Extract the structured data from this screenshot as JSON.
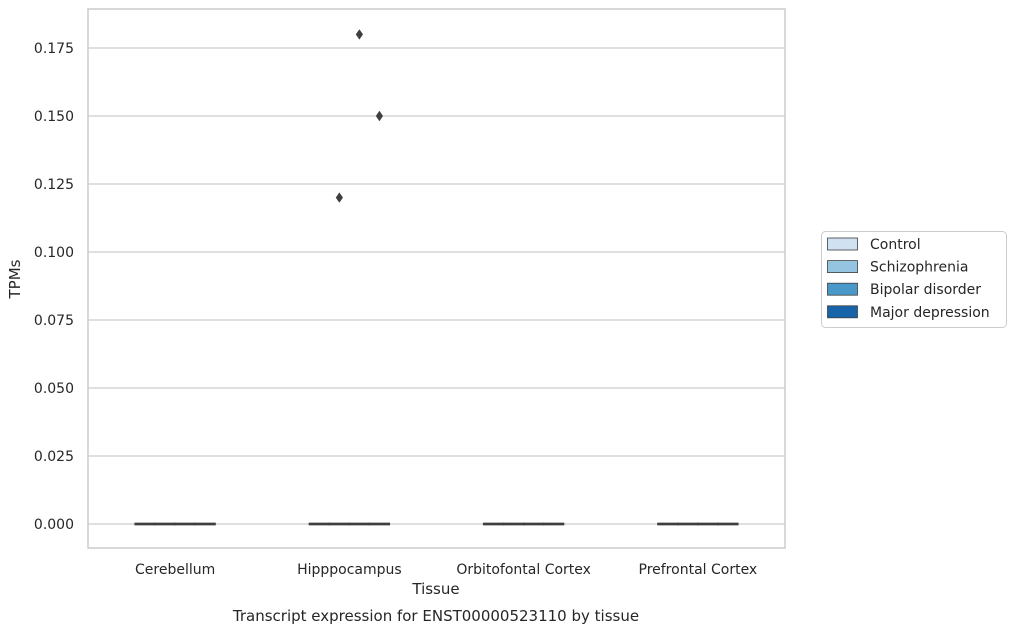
{
  "chart_data": {
    "type": "box",
    "title": "",
    "caption": "Transcript expression for ENST00000523110 by tissue",
    "xlabel": "Tissue",
    "ylabel": "TPMs",
    "ylim": [
      -0.0085,
      0.189
    ],
    "yticks": [
      0.0,
      0.025,
      0.05,
      0.075,
      0.1,
      0.125,
      0.15,
      0.175
    ],
    "ytick_labels": [
      "0.000",
      "0.025",
      "0.050",
      "0.075",
      "0.100",
      "0.125",
      "0.150",
      "0.175"
    ],
    "categories": [
      "Cerebellum",
      "Hipppocampus",
      "Orbitofontal Cortex",
      "Prefrontal Cortex"
    ],
    "grid": "horizontal",
    "legend_position": "right",
    "series": [
      {
        "name": "Control",
        "color": "#d0e1f2",
        "boxes": [
          {
            "category": "Cerebellum",
            "min": 0,
            "q1": 0,
            "median": 0,
            "q3": 0,
            "max": 0,
            "outliers": []
          },
          {
            "category": "Hipppocampus",
            "min": 0,
            "q1": 0,
            "median": 0,
            "q3": 0,
            "max": 0,
            "outliers": []
          },
          {
            "category": "Orbitofontal Cortex",
            "min": 0,
            "q1": 0,
            "median": 0,
            "q3": 0,
            "max": 0,
            "outliers": []
          },
          {
            "category": "Prefrontal Cortex",
            "min": 0,
            "q1": 0,
            "median": 0,
            "q3": 0,
            "max": 0,
            "outliers": []
          }
        ]
      },
      {
        "name": "Schizophrenia",
        "color": "#94c4df",
        "boxes": [
          {
            "category": "Cerebellum",
            "min": 0,
            "q1": 0,
            "median": 0,
            "q3": 0,
            "max": 0,
            "outliers": []
          },
          {
            "category": "Hipppocampus",
            "min": 0,
            "q1": 0,
            "median": 0,
            "q3": 0,
            "max": 0,
            "outliers": [
              0.12
            ]
          },
          {
            "category": "Orbitofontal Cortex",
            "min": 0,
            "q1": 0,
            "median": 0,
            "q3": 0,
            "max": 0,
            "outliers": []
          },
          {
            "category": "Prefrontal Cortex",
            "min": 0,
            "q1": 0,
            "median": 0,
            "q3": 0,
            "max": 0,
            "outliers": []
          }
        ]
      },
      {
        "name": "Bipolar disorder",
        "color": "#4a98c9",
        "boxes": [
          {
            "category": "Cerebellum",
            "min": 0,
            "q1": 0,
            "median": 0,
            "q3": 0,
            "max": 0,
            "outliers": []
          },
          {
            "category": "Hipppocampus",
            "min": 0,
            "q1": 0,
            "median": 0,
            "q3": 0,
            "max": 0,
            "outliers": [
              0.18
            ]
          },
          {
            "category": "Orbitofontal Cortex",
            "min": 0,
            "q1": 0,
            "median": 0,
            "q3": 0,
            "max": 0,
            "outliers": []
          },
          {
            "category": "Prefrontal Cortex",
            "min": 0,
            "q1": 0,
            "median": 0,
            "q3": 0,
            "max": 0,
            "outliers": []
          }
        ]
      },
      {
        "name": "Major depression",
        "color": "#1764ab",
        "boxes": [
          {
            "category": "Cerebellum",
            "min": 0,
            "q1": 0,
            "median": 0,
            "q3": 0,
            "max": 0,
            "outliers": []
          },
          {
            "category": "Hipppocampus",
            "min": 0,
            "q1": 0,
            "median": 0,
            "q3": 0,
            "max": 0,
            "outliers": [
              0.15
            ]
          },
          {
            "category": "Orbitofontal Cortex",
            "min": 0,
            "q1": 0,
            "median": 0,
            "q3": 0,
            "max": 0,
            "outliers": []
          },
          {
            "category": "Prefrontal Cortex",
            "min": 0,
            "q1": 0,
            "median": 0,
            "q3": 0,
            "max": 0,
            "outliers": []
          }
        ]
      }
    ]
  }
}
